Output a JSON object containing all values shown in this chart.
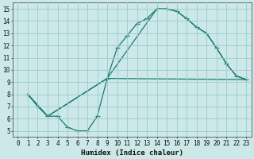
{
  "xlabel": "Humidex (Indice chaleur)",
  "bg_color": "#cce8e8",
  "grid_color": "#99cccc",
  "line_color": "#1a7a6e",
  "xlim": [
    -0.5,
    23.5
  ],
  "ylim": [
    4.5,
    15.5
  ],
  "xticks": [
    0,
    1,
    2,
    3,
    4,
    5,
    6,
    7,
    8,
    9,
    10,
    11,
    12,
    13,
    14,
    15,
    16,
    17,
    18,
    19,
    20,
    21,
    22,
    23
  ],
  "yticks": [
    5,
    6,
    7,
    8,
    9,
    10,
    11,
    12,
    13,
    14,
    15
  ],
  "line1_x": [
    1,
    2,
    3,
    4,
    5,
    6,
    7,
    8,
    9,
    10,
    11,
    12,
    13,
    14,
    15,
    16,
    17,
    18,
    19,
    20,
    21,
    22,
    23
  ],
  "line1_y": [
    8.0,
    7.0,
    6.2,
    6.2,
    5.3,
    5.0,
    5.0,
    6.2,
    9.3,
    11.8,
    12.8,
    13.8,
    14.2,
    15.0,
    15.0,
    14.8,
    14.2,
    13.5,
    13.0,
    11.8,
    10.5,
    9.5,
    9.2
  ],
  "line2_x": [
    1,
    3,
    9,
    14,
    15,
    16,
    17,
    18,
    19,
    20,
    21,
    22,
    23
  ],
  "line2_y": [
    8.0,
    6.2,
    9.3,
    15.0,
    15.0,
    14.8,
    14.2,
    13.5,
    13.0,
    11.8,
    10.5,
    9.5,
    9.2
  ],
  "line3_x": [
    1,
    3,
    9,
    23
  ],
  "line3_y": [
    8.0,
    6.2,
    9.3,
    9.2
  ]
}
